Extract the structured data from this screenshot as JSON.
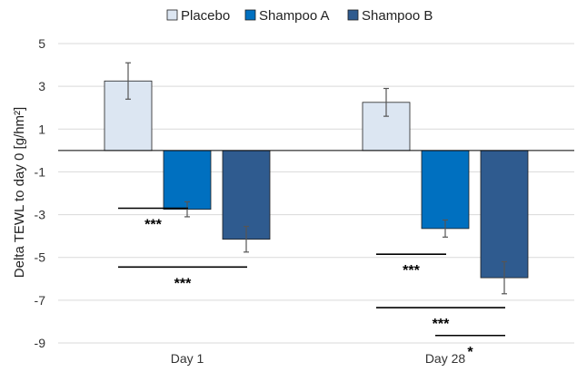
{
  "chart_data": {
    "type": "bar",
    "categories": [
      "Day 1",
      "Day 28"
    ],
    "series": [
      {
        "name": "Placebo",
        "values": [
          3.25,
          2.25
        ],
        "errors": [
          0.85,
          0.65
        ],
        "color": "#dce6f2"
      },
      {
        "name": "Shampoo A",
        "values": [
          -2.75,
          -3.65
        ],
        "errors": [
          0.35,
          0.4
        ],
        "color": "#0070c0"
      },
      {
        "name": "Shampoo B",
        "values": [
          -4.15,
          -5.95
        ],
        "errors": [
          0.6,
          0.75
        ],
        "color": "#2f5b8f"
      }
    ],
    "title": "",
    "xlabel": "",
    "ylabel": "Delta TEWL to day 0 [g/hm²]",
    "ylim": [
      -9,
      5
    ],
    "yticks": [
      5,
      3,
      1,
      -1,
      -3,
      -5,
      -7,
      -9
    ],
    "grid": true,
    "legend_position": "top",
    "significance": [
      {
        "category": "Day 1",
        "from": "Placebo",
        "to": "Shampoo A",
        "y": -2.7,
        "label": "***"
      },
      {
        "category": "Day 1",
        "from": "Placebo",
        "to": "Shampoo B",
        "y": -5.45,
        "label": "***"
      },
      {
        "category": "Day 28",
        "from": "Placebo",
        "to": "Shampoo A",
        "y": -4.85,
        "label": "***"
      },
      {
        "category": "Day 28",
        "from": "Placebo",
        "to": "Shampoo B",
        "y": -7.35,
        "label": "***"
      },
      {
        "category": "Day 28",
        "from": "Shampoo A",
        "to": "Shampoo B",
        "y": -8.65,
        "label": "*"
      }
    ]
  }
}
